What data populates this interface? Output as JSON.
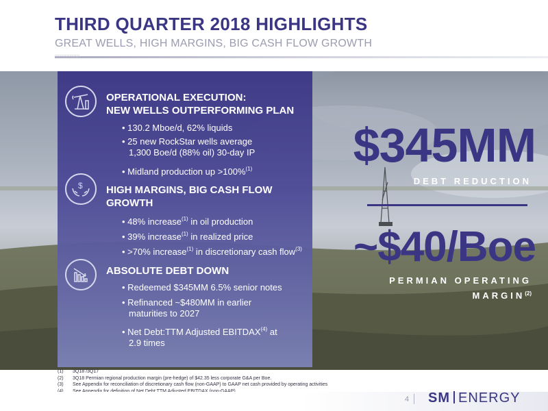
{
  "header": {
    "title": "THIRD QUARTER 2018 HIGHLIGHTS",
    "subtitle": "GREAT WELLS, HIGH MARGINS, BIG CASH FLOW GROWTH",
    "rule_text": "\\\\\\\\\\\\\\\\\\\\\\\\\\\\\\\\\\\\\\\\\\\\"
  },
  "sections": [
    {
      "icon": "oil-pumpjack-icon",
      "heading_line1": "OPERATIONAL EXECUTION:",
      "heading_line2": "NEW WELLS OUTPERFORMING PLAN",
      "bullets": [
        {
          "text": "• 130.2 Mboe/d, 62% liquids"
        },
        {
          "text": "• 25 new RockStar wells average",
          "text2": "1,300 Boe/d (88% oil) 30-day IP"
        },
        {
          "text": "• Midland production up >100%",
          "sup": "(1)"
        }
      ]
    },
    {
      "icon": "dollar-hands-icon",
      "heading_line1": "HIGH MARGINS, BIG CASH FLOW",
      "heading_line2": "GROWTH",
      "bullets": [
        {
          "text": "• 48% increase",
          "sup": "(1)",
          "after": " in oil production"
        },
        {
          "text": "• 39% increase",
          "sup": "(1)",
          "after": " in realized price"
        },
        {
          "text": "• >70% increase",
          "sup": "(1)",
          "after": " in discretionary cash flow",
          "sup2": "(3)"
        }
      ]
    },
    {
      "icon": "declining-bar-chart-icon",
      "heading_line1": "ABSOLUTE DEBT DOWN",
      "bullets": [
        {
          "text": "• Redeemed $345MM 6.5% senior notes"
        },
        {
          "text": "• Refinanced ~$480MM in earlier",
          "text2": "maturities to 2027"
        },
        {
          "text": "• Net Debt:TTM Adjusted EBITDAX",
          "sup": "(4)",
          "after": " at",
          "text2": "2.9 times"
        }
      ]
    }
  ],
  "callouts": {
    "debt_value": "$345MM",
    "debt_caption": "DEBT REDUCTION",
    "margin_value": "~$40/Boe",
    "margin_caption_line1": "PERMIAN OPERATING",
    "margin_caption_line2": "MARGIN",
    "margin_caption_sup": "(2)"
  },
  "footnotes": [
    {
      "num": "(1)",
      "text": "3Q18 /3Q17"
    },
    {
      "num": "(2)",
      "text": "3Q18 Permian regional production margin (pre-hedge) of $42.35 less corporate G&A per Boe."
    },
    {
      "num": "(3)",
      "text": "See Appendix for reconciliation of discretionary cash flow (non-GAAP) to GAAP net cash provided by operating activities"
    },
    {
      "num": "(4)",
      "text": "See Appendix for definition of Net Debt:TTM Adjusted EBITDAX (non-GAAP)"
    }
  ],
  "footer": {
    "page_number": "4",
    "logo_sm": "SM",
    "logo_energy": "ENERGY"
  },
  "colors": {
    "brand_purple": "#3a3683",
    "subtitle_gray": "#9b9cb0"
  }
}
